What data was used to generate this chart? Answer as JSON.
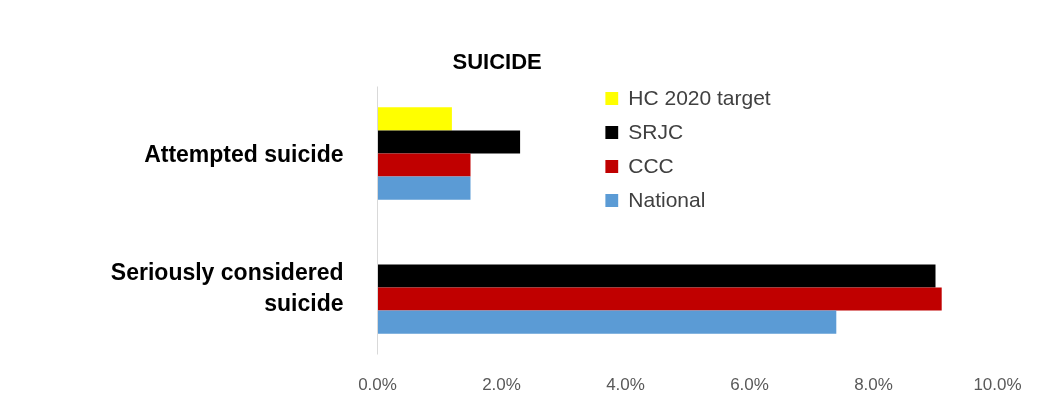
{
  "chart_data": {
    "type": "bar",
    "orientation": "horizontal",
    "title": "SUICIDE",
    "categories": [
      "Attempted suicide",
      "Seriously considered suicide"
    ],
    "series": [
      {
        "name": "HC 2020 target",
        "color": "#ffff00",
        "values": [
          1.2,
          null
        ]
      },
      {
        "name": "SRJC",
        "color": "#000000",
        "values": [
          2.3,
          9.0
        ]
      },
      {
        "name": "CCC",
        "color": "#c00000",
        "values": [
          1.5,
          9.1
        ]
      },
      {
        "name": "National",
        "color": "#5b9bd5",
        "values": [
          1.5,
          7.4
        ]
      }
    ],
    "xlim": [
      0,
      10
    ],
    "xticks": [
      {
        "value": 0,
        "label": "0.0%"
      },
      {
        "value": 2,
        "label": "2.0%"
      },
      {
        "value": 4,
        "label": "4.0%"
      },
      {
        "value": 6,
        "label": "6.0%"
      },
      {
        "value": 8,
        "label": "8.0%"
      },
      {
        "value": 10,
        "label": "10.0%"
      }
    ],
    "legend": "top"
  }
}
